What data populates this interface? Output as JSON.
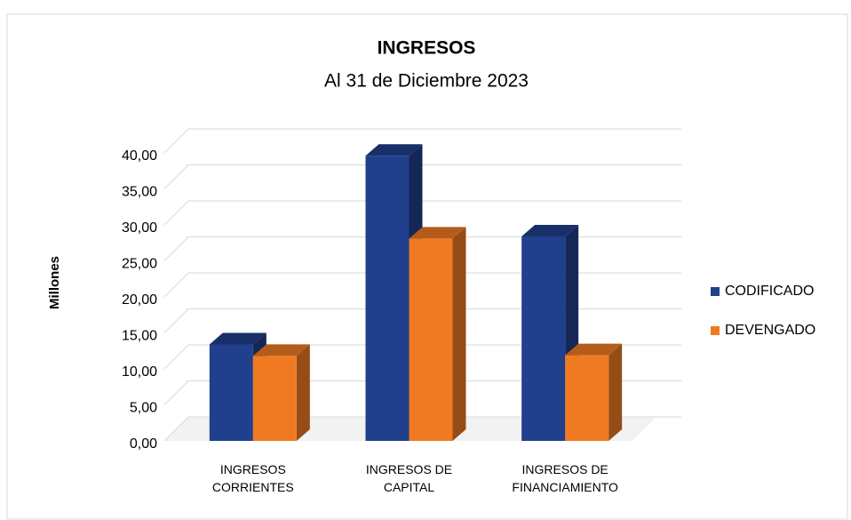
{
  "chart_data": {
    "type": "bar3d",
    "title": "INGRESOS",
    "subtitle": "Al 31 de Diciembre 2023",
    "y_label": "Millones",
    "categories": [
      "INGRESOS CORRIENTES",
      "INGRESOS DE CAPITAL",
      "INGRESOS DE FINANCIAMIENTO"
    ],
    "series": [
      {
        "name": "CODIFICADO",
        "color": "#203f8c",
        "values": [
          13.4,
          39.6,
          28.4
        ]
      },
      {
        "name": "DEVENGADO",
        "color": "#f07a22",
        "values": [
          11.8,
          28.1,
          11.9
        ]
      }
    ],
    "ylim": [
      0,
      40
    ],
    "yticks": [
      {
        "value": 0,
        "label": "0,00"
      },
      {
        "value": 5,
        "label": "5,00"
      },
      {
        "value": 10,
        "label": "10,00"
      },
      {
        "value": 15,
        "label": "15,00"
      },
      {
        "value": 20,
        "label": "20,00"
      },
      {
        "value": 25,
        "label": "25,00"
      },
      {
        "value": 30,
        "label": "30,00"
      },
      {
        "value": 35,
        "label": "35,00"
      },
      {
        "value": 40,
        "label": "40,00"
      }
    ],
    "grid": true,
    "legend": "right"
  }
}
